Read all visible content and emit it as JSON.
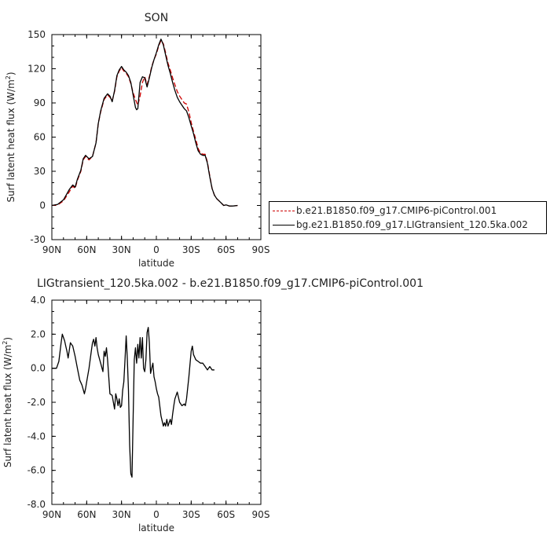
{
  "chart_data": [
    {
      "type": "line",
      "title": "SON",
      "xlabel": "latitude",
      "ylabel": "Surf latent heat flux (W/m²)",
      "ylabel_main": "Surf latent heat flux (W/m",
      "ylabel_sup": "2",
      "ylabel_end": ")",
      "x_direction": "north-to-south",
      "xlim": [
        90,
        -90
      ],
      "ylim": [
        -30,
        150
      ],
      "xticks": [
        90,
        60,
        30,
        0,
        -30,
        -60,
        -90
      ],
      "xtick_labels": [
        "90N",
        "60N",
        "30N",
        "0",
        "30S",
        "60S",
        "90S"
      ],
      "yticks": [
        -30,
        0,
        30,
        60,
        90,
        120,
        150
      ],
      "ytick_labels": [
        "-30",
        "0",
        "30",
        "60",
        "90",
        "120",
        "150"
      ],
      "legend_position": "right",
      "series": [
        {
          "name": "b.e21.B1850.f09_g17.CMIP6-piControl.001",
          "color": "#cc0000",
          "dash": "dashed",
          "points": [
            [
              90,
              0
            ],
            [
              85,
              0.5
            ],
            [
              80,
              4
            ],
            [
              75,
              12
            ],
            [
              72,
              17
            ],
            [
              70,
              15
            ],
            [
              68,
              22
            ],
            [
              65,
              30
            ],
            [
              63,
              40
            ],
            [
              61,
              43
            ],
            [
              58,
              40
            ],
            [
              55,
              43
            ],
            [
              52,
              55
            ],
            [
              50,
              72
            ],
            [
              48,
              82
            ],
            [
              45,
              93
            ],
            [
              42,
              97
            ],
            [
              40,
              95
            ],
            [
              38,
              92
            ],
            [
              36,
              100
            ],
            [
              34,
              113
            ],
            [
              32,
              118
            ],
            [
              30,
              121
            ],
            [
              28,
              118
            ],
            [
              26,
              116
            ],
            [
              24,
              113
            ],
            [
              22,
              107
            ],
            [
              20,
              99
            ],
            [
              18,
              93
            ],
            [
              16,
              88
            ],
            [
              14,
              96
            ],
            [
              12,
              108
            ],
            [
              10,
              113
            ],
            [
              8,
              106
            ],
            [
              6,
              113
            ],
            [
              4,
              122
            ],
            [
              2,
              128
            ],
            [
              0,
              133
            ],
            [
              -2,
              140
            ],
            [
              -4,
              145
            ],
            [
              -6,
              142
            ],
            [
              -8,
              134
            ],
            [
              -10,
              125
            ],
            [
              -12,
              119
            ],
            [
              -14,
              112
            ],
            [
              -16,
              106
            ],
            [
              -18,
              100
            ],
            [
              -20,
              96
            ],
            [
              -22,
              93
            ],
            [
              -24,
              90
            ],
            [
              -26,
              89
            ],
            [
              -28,
              82
            ],
            [
              -30,
              73
            ],
            [
              -32,
              65
            ],
            [
              -34,
              58
            ],
            [
              -36,
              50
            ],
            [
              -38,
              46
            ],
            [
              -40,
              45
            ],
            [
              -42,
              45
            ],
            [
              -44,
              38
            ],
            [
              -46,
              26
            ],
            [
              -48,
              15
            ],
            [
              -50,
              9
            ],
            [
              -52,
              6
            ],
            [
              -54,
              4
            ],
            [
              -56,
              2
            ],
            [
              -58,
              0
            ],
            [
              -60,
              0.5
            ],
            [
              -63,
              -0.5
            ],
            [
              -66,
              -0.5
            ],
            [
              -70,
              0
            ]
          ]
        },
        {
          "name": "bg.e21.B1850.f09_g17.LIGtransient_120.5ka.002",
          "color": "#000000",
          "dash": "solid",
          "points": [
            [
              90,
              0
            ],
            [
              85,
              1
            ],
            [
              80,
              5
            ],
            [
              75,
              14
            ],
            [
              72,
              18
            ],
            [
              70,
              16
            ],
            [
              68,
              23
            ],
            [
              65,
              31
            ],
            [
              63,
              41
            ],
            [
              61,
              44
            ],
            [
              58,
              41
            ],
            [
              55,
              43
            ],
            [
              52,
              55
            ],
            [
              50,
              72
            ],
            [
              48,
              83
            ],
            [
              45,
              94
            ],
            [
              42,
              98
            ],
            [
              40,
              96
            ],
            [
              38,
              91
            ],
            [
              36,
              101
            ],
            [
              34,
              114
            ],
            [
              32,
              119
            ],
            [
              30,
              122
            ],
            [
              28,
              119
            ],
            [
              26,
              117
            ],
            [
              24,
              114
            ],
            [
              22,
              108
            ],
            [
              20,
              97
            ],
            [
              18,
              86
            ],
            [
              17,
              84
            ],
            [
              16,
              85
            ],
            [
              14,
              108
            ],
            [
              12,
              113
            ],
            [
              10,
              112
            ],
            [
              8,
              104
            ],
            [
              6,
              112
            ],
            [
              4,
              121
            ],
            [
              2,
              128
            ],
            [
              0,
              134
            ],
            [
              -2,
              141
            ],
            [
              -4,
              146
            ],
            [
              -6,
              141
            ],
            [
              -8,
              132
            ],
            [
              -10,
              123
            ],
            [
              -12,
              116
            ],
            [
              -14,
              108
            ],
            [
              -16,
              101
            ],
            [
              -18,
              95
            ],
            [
              -20,
              91
            ],
            [
              -22,
              88
            ],
            [
              -24,
              85
            ],
            [
              -26,
              83
            ],
            [
              -28,
              77
            ],
            [
              -30,
              70
            ],
            [
              -32,
              63
            ],
            [
              -34,
              55
            ],
            [
              -36,
              48
            ],
            [
              -38,
              45
            ],
            [
              -40,
              44
            ],
            [
              -42,
              44
            ],
            [
              -44,
              37
            ],
            [
              -46,
              25
            ],
            [
              -48,
              15
            ],
            [
              -50,
              9
            ],
            [
              -52,
              6
            ],
            [
              -54,
              4
            ],
            [
              -56,
              2
            ],
            [
              -58,
              0
            ],
            [
              -60,
              0.5
            ],
            [
              -63,
              -0.5
            ],
            [
              -66,
              -0.5
            ],
            [
              -70,
              0
            ]
          ]
        }
      ]
    },
    {
      "type": "line",
      "title": "LIGtransient_120.5ka.002 - b.e21.B1850.f09_g17.CMIP6-piControl.001",
      "xlabel": "latitude",
      "ylabel": "Surf latent heat flux (W/m²)",
      "ylabel_main": "Surf latent heat flux (W/m",
      "ylabel_sup": "2",
      "ylabel_end": ")",
      "x_direction": "north-to-south",
      "xlim": [
        90,
        -90
      ],
      "ylim": [
        -8,
        4
      ],
      "xticks": [
        90,
        60,
        30,
        0,
        -30,
        -60,
        -90
      ],
      "xtick_labels": [
        "90N",
        "60N",
        "30N",
        "0",
        "30S",
        "60S",
        "90S"
      ],
      "yticks": [
        -8,
        -6,
        -4,
        -2,
        0,
        2,
        4
      ],
      "ytick_labels": [
        "-8.0",
        "-6.0",
        "-4.0",
        "-2.0",
        "0.0",
        "2.0",
        "4.0"
      ],
      "series": [
        {
          "name": "",
          "color": "#000000",
          "dash": "solid",
          "points": [
            [
              90,
              0
            ],
            [
              88,
              0
            ],
            [
              86,
              0
            ],
            [
              84,
              0.4
            ],
            [
              82,
              1.5
            ],
            [
              81,
              2.0
            ],
            [
              79,
              1.6
            ],
            [
              78,
              1.3
            ],
            [
              77,
              1.0
            ],
            [
              76,
              0.6
            ],
            [
              74,
              1.5
            ],
            [
              72,
              1.3
            ],
            [
              70,
              0.7
            ],
            [
              68,
              0
            ],
            [
              66,
              -0.7
            ],
            [
              64,
              -1.0
            ],
            [
              62,
              -1.5
            ],
            [
              61,
              -1.2
            ],
            [
              60,
              -0.8
            ],
            [
              58,
              0
            ],
            [
              56,
              1.0
            ],
            [
              55,
              1.5
            ],
            [
              54,
              1.7
            ],
            [
              53,
              1.3
            ],
            [
              52,
              1.8
            ],
            [
              51,
              1.2
            ],
            [
              50,
              0.8
            ],
            [
              48,
              0.3
            ],
            [
              46,
              -0.2
            ],
            [
              45,
              1.0
            ],
            [
              44,
              0.7
            ],
            [
              43,
              1.2
            ],
            [
              42,
              0.5
            ],
            [
              40,
              -1.5
            ],
            [
              38,
              -1.6
            ],
            [
              37,
              -2.0
            ],
            [
              36,
              -2.4
            ],
            [
              35,
              -1.5
            ],
            [
              34,
              -1.8
            ],
            [
              33,
              -2.2
            ],
            [
              32,
              -1.8
            ],
            [
              31,
              -2.3
            ],
            [
              30,
              -2.2
            ],
            [
              29,
              -1.3
            ],
            [
              28,
              -0.8
            ],
            [
              27,
              0.5
            ],
            [
              26,
              1.9
            ],
            [
              25,
              0.5
            ],
            [
              24,
              -1.3
            ],
            [
              23,
              -4.5
            ],
            [
              22,
              -6.2
            ],
            [
              21,
              -6.4
            ],
            [
              20,
              -3.0
            ],
            [
              19,
              0.5
            ],
            [
              18,
              1.2
            ],
            [
              17,
              0.3
            ],
            [
              16,
              1.4
            ],
            [
              15,
              0.6
            ],
            [
              14,
              1.8
            ],
            [
              13,
              0.6
            ],
            [
              12,
              1.8
            ],
            [
              11,
              0
            ],
            [
              10,
              -0.2
            ],
            [
              9,
              0.5
            ],
            [
              8,
              2.1
            ],
            [
              7,
              2.4
            ],
            [
              6,
              1.5
            ],
            [
              5,
              -0.3
            ],
            [
              4,
              0
            ],
            [
              3,
              0.3
            ],
            [
              2,
              -0.5
            ],
            [
              1,
              -0.8
            ],
            [
              0,
              -1.2
            ],
            [
              -1,
              -1.5
            ],
            [
              -2,
              -1.7
            ],
            [
              -4,
              -2.8
            ],
            [
              -6,
              -3.4
            ],
            [
              -7,
              -3.2
            ],
            [
              -8,
              -3.4
            ],
            [
              -9,
              -3.0
            ],
            [
              -10,
              -3.4
            ],
            [
              -12,
              -3.0
            ],
            [
              -13,
              -3.3
            ],
            [
              -14,
              -2.7
            ],
            [
              -15,
              -2.2
            ],
            [
              -16,
              -1.8
            ],
            [
              -18,
              -1.4
            ],
            [
              -20,
              -2.0
            ],
            [
              -22,
              -2.2
            ],
            [
              -24,
              -2.1
            ],
            [
              -25,
              -2.2
            ],
            [
              -26,
              -1.8
            ],
            [
              -28,
              -0.5
            ],
            [
              -30,
              1.0
            ],
            [
              -31,
              1.3
            ],
            [
              -32,
              0.8
            ],
            [
              -34,
              0.5
            ],
            [
              -36,
              0.4
            ],
            [
              -38,
              0.3
            ],
            [
              -40,
              0.3
            ],
            [
              -42,
              0.1
            ],
            [
              -44,
              -0.1
            ],
            [
              -46,
              0.1
            ],
            [
              -48,
              -0.1
            ],
            [
              -50,
              -0.1
            ]
          ]
        }
      ]
    }
  ]
}
